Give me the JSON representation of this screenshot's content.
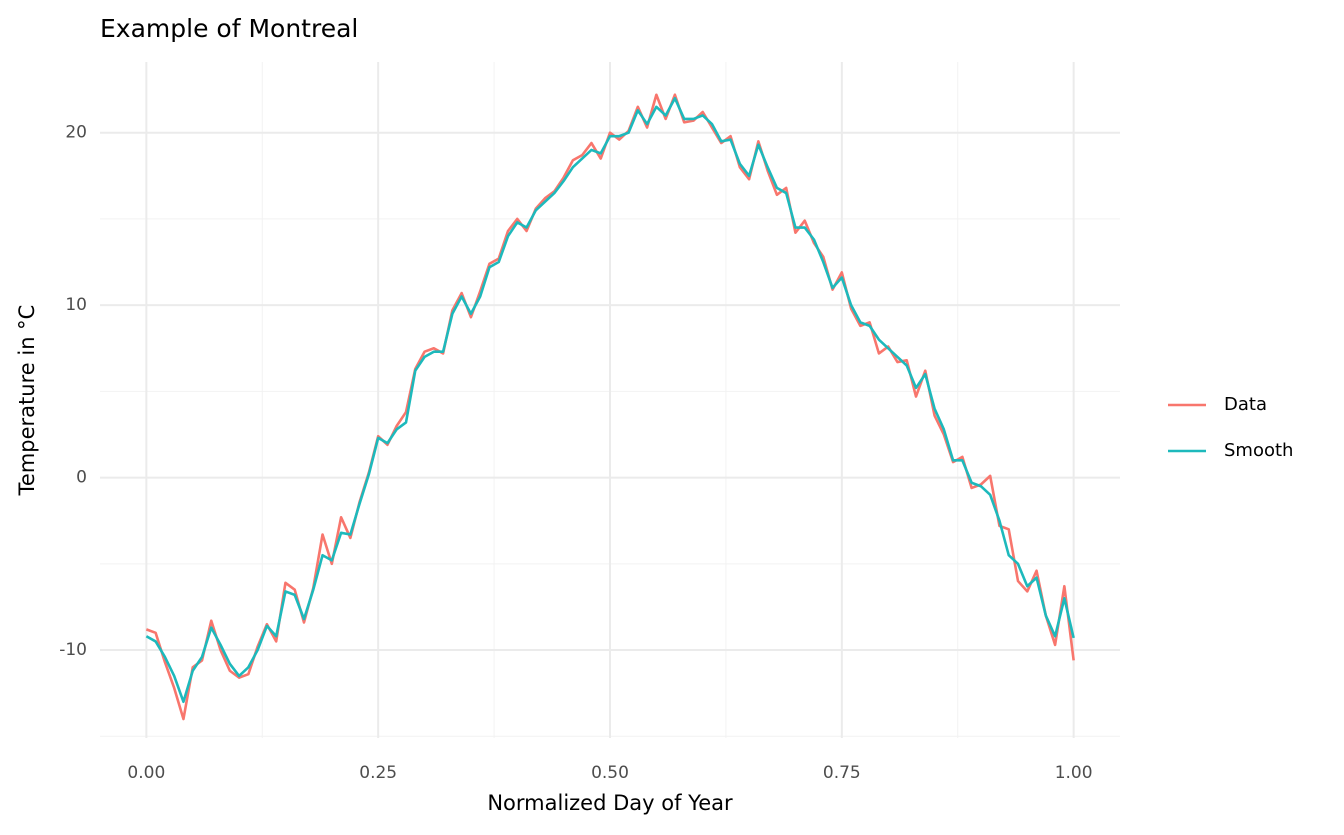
{
  "chart_data": {
    "type": "line",
    "title": "Example of Montreal",
    "x_label": "Normalized Day of Year",
    "y_label": "Temperature in °C",
    "x": [
      0,
      0.01,
      0.02,
      0.03,
      0.04,
      0.05,
      0.06,
      0.07,
      0.08,
      0.09,
      0.1,
      0.11,
      0.12,
      0.13,
      0.14,
      0.15,
      0.16,
      0.17,
      0.18,
      0.19,
      0.2,
      0.21,
      0.22,
      0.23,
      0.24,
      0.25,
      0.26,
      0.27,
      0.28,
      0.29,
      0.3,
      0.31,
      0.32,
      0.33,
      0.34,
      0.35,
      0.36,
      0.37,
      0.38,
      0.39,
      0.4,
      0.41,
      0.42,
      0.43,
      0.44,
      0.45,
      0.46,
      0.47,
      0.48,
      0.49,
      0.5,
      0.51,
      0.52,
      0.53,
      0.54,
      0.55,
      0.56,
      0.57,
      0.58,
      0.59,
      0.6,
      0.61,
      0.62,
      0.63,
      0.64,
      0.65,
      0.66,
      0.67,
      0.68,
      0.69,
      0.7,
      0.71,
      0.72,
      0.73,
      0.74,
      0.75,
      0.76,
      0.77,
      0.78,
      0.79,
      0.8,
      0.81,
      0.82,
      0.83,
      0.84,
      0.85,
      0.86,
      0.87,
      0.88,
      0.89,
      0.9,
      0.91,
      0.92,
      0.93,
      0.94,
      0.95,
      0.96,
      0.97,
      0.98,
      0.99,
      1
    ],
    "series": [
      {
        "name": "Data",
        "color": "#F8766D",
        "values": [
          -8.8,
          -9.0,
          -10.7,
          -12.2,
          -14.0,
          -11.0,
          -10.6,
          -8.3,
          -10.0,
          -11.2,
          -11.6,
          -11.4,
          -9.8,
          -8.5,
          -9.5,
          -6.1,
          -6.5,
          -8.4,
          -6.4,
          -3.3,
          -5.0,
          -2.3,
          -3.5,
          -1.4,
          0.3,
          2.4,
          1.9,
          3.0,
          3.8,
          6.3,
          7.3,
          7.5,
          7.2,
          9.7,
          10.7,
          9.3,
          10.8,
          12.4,
          12.7,
          14.3,
          15.0,
          14.3,
          15.6,
          16.2,
          16.6,
          17.4,
          18.4,
          18.7,
          19.4,
          18.5,
          20.0,
          19.6,
          20.1,
          21.5,
          20.3,
          22.2,
          20.8,
          22.2,
          20.6,
          20.7,
          21.2,
          20.3,
          19.4,
          19.8,
          18.0,
          17.3,
          19.5,
          17.8,
          16.4,
          16.8,
          14.2,
          14.9,
          13.6,
          12.8,
          10.9,
          11.9,
          9.8,
          8.8,
          9.0,
          7.2,
          7.6,
          6.7,
          6.8,
          4.7,
          6.2,
          3.6,
          2.5,
          0.9,
          1.2,
          -0.6,
          -0.4,
          0.1,
          -2.8,
          -3.0,
          -6.0,
          -6.6,
          -5.4,
          -8.0,
          -9.7,
          -6.3,
          -10.6
        ]
      },
      {
        "name": "Smooth",
        "color": "#1DB9BC",
        "values": [
          -9.2,
          -9.5,
          -10.4,
          -11.5,
          -13.0,
          -11.2,
          -10.4,
          -8.7,
          -9.7,
          -10.8,
          -11.5,
          -11.0,
          -10.0,
          -8.6,
          -9.2,
          -6.6,
          -6.8,
          -8.2,
          -6.5,
          -4.5,
          -4.8,
          -3.2,
          -3.3,
          -1.5,
          0.2,
          2.3,
          2.0,
          2.8,
          3.2,
          6.2,
          7.0,
          7.3,
          7.3,
          9.5,
          10.5,
          9.5,
          10.5,
          12.2,
          12.5,
          14.0,
          14.8,
          14.5,
          15.5,
          16.0,
          16.5,
          17.2,
          18.0,
          18.5,
          19.0,
          18.8,
          19.8,
          19.8,
          20.0,
          21.3,
          20.5,
          21.5,
          21.0,
          22.0,
          20.8,
          20.8,
          21.0,
          20.5,
          19.5,
          19.6,
          18.2,
          17.5,
          19.3,
          18.0,
          16.8,
          16.5,
          14.5,
          14.5,
          13.8,
          12.5,
          11.0,
          11.6,
          10.0,
          9.0,
          8.8,
          8.0,
          7.5,
          7.0,
          6.5,
          5.2,
          6.0,
          4.0,
          2.8,
          1.0,
          1.0,
          -0.3,
          -0.5,
          -1.0,
          -2.5,
          -4.5,
          -5.0,
          -6.3,
          -5.8,
          -8.0,
          -9.2,
          -7.0,
          -9.3
        ]
      }
    ],
    "xlim": [
      -0.05,
      1.05
    ],
    "ylim": [
      -15.1,
      24.1
    ],
    "xticks": [
      {
        "value": 0,
        "label": "0.00"
      },
      {
        "value": 0.25,
        "label": "0.25"
      },
      {
        "value": 0.5,
        "label": "0.50"
      },
      {
        "value": 0.75,
        "label": "0.75"
      },
      {
        "value": 1,
        "label": "1.00"
      }
    ],
    "yticks": [
      -10,
      0,
      10,
      20
    ],
    "minor_xticks": [
      0.125,
      0.375,
      0.625,
      0.875
    ],
    "minor_yticks": [
      -15,
      -5,
      5,
      15
    ],
    "grid": true,
    "legend": "right"
  }
}
